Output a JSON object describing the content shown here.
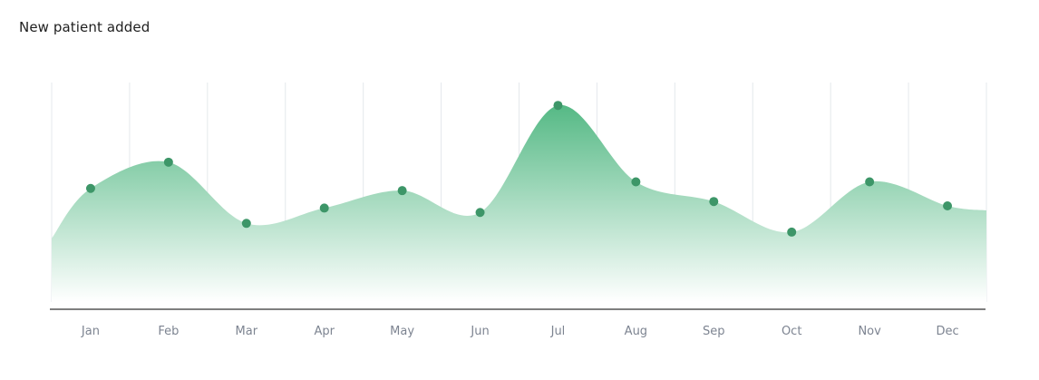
{
  "title": "New patient added",
  "colors": {
    "area_top": "#55b985",
    "area_bottom": "#ffffff",
    "point": "#3d9668",
    "grid": "#e4e8ec",
    "axis": "#555555",
    "tick_label": "#7d8491"
  },
  "chart_data": {
    "type": "area",
    "title": "New patient added",
    "xlabel": "",
    "ylabel": "",
    "categories": [
      "Jan",
      "Feb",
      "Mar",
      "Apr",
      "May",
      "Jun",
      "Jul",
      "Aug",
      "Sep",
      "Oct",
      "Nov",
      "Dec"
    ],
    "series": [
      {
        "values": [
          52,
          64,
          36,
          43,
          51,
          41,
          90,
          55,
          46,
          32,
          55,
          44
        ]
      }
    ],
    "ylim": [
      0,
      100
    ],
    "grid": {
      "vertical": true,
      "horizontal": false
    },
    "legend": "none",
    "smooth": true
  }
}
